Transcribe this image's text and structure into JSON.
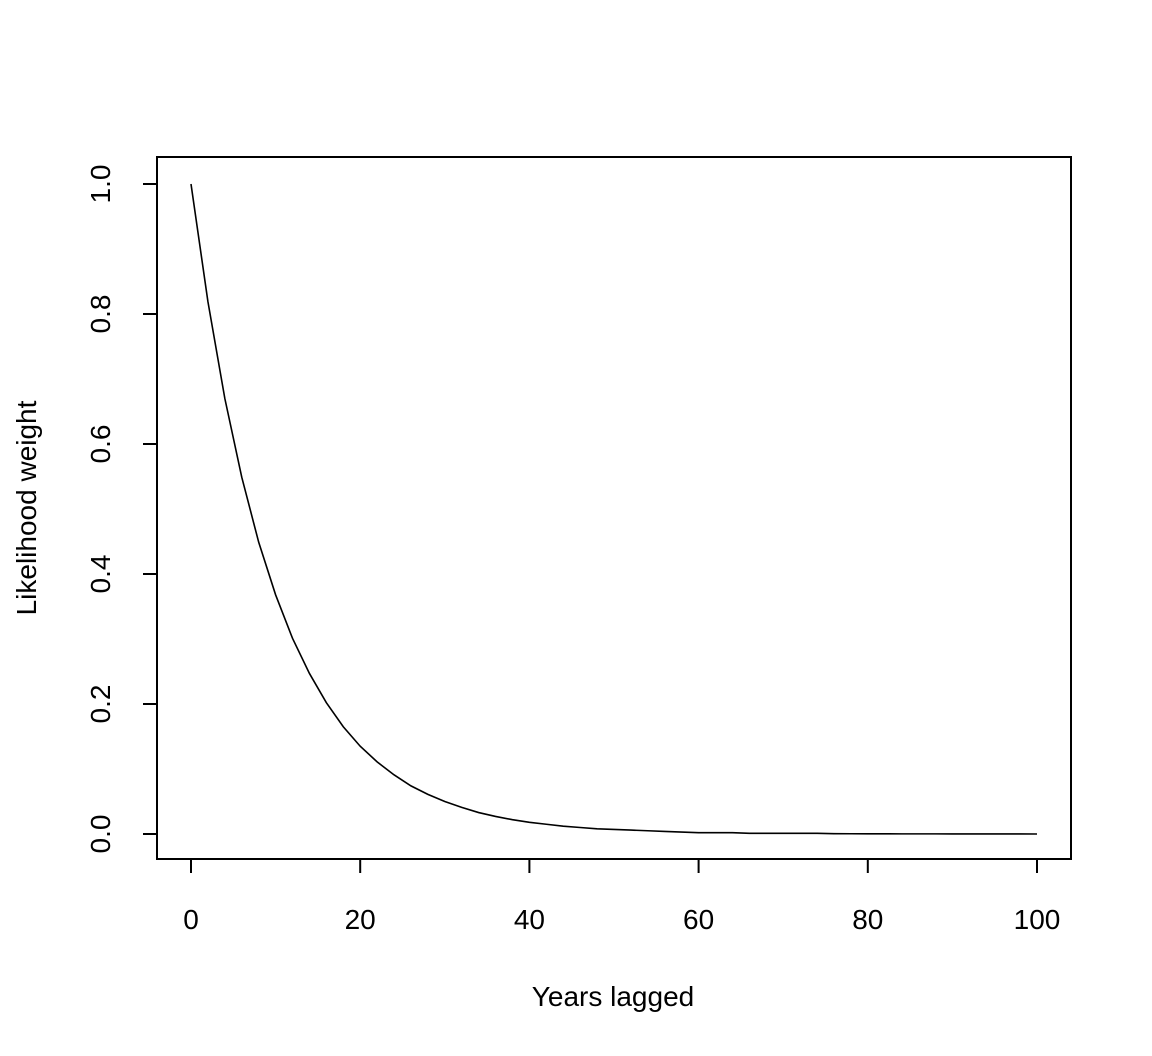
{
  "chart_data": {
    "type": "line",
    "title": "",
    "xlabel": "Years lagged",
    "ylabel": "Likelihood weight",
    "xlim": [
      0,
      100
    ],
    "ylim": [
      0,
      1
    ],
    "grid": false,
    "x_ticks": [
      0,
      20,
      40,
      60,
      80,
      100
    ],
    "y_ticks": [
      0.0,
      0.2,
      0.4,
      0.6,
      0.8,
      1.0
    ],
    "x_tick_labels": [
      "0",
      "20",
      "40",
      "60",
      "80",
      "100"
    ],
    "y_tick_labels": [
      "0.0",
      "0.2",
      "0.4",
      "0.6",
      "0.8",
      "1.0"
    ],
    "series": [
      {
        "x": [
          0,
          2,
          4,
          6,
          8,
          10,
          12,
          14,
          16,
          18,
          20,
          22,
          24,
          26,
          28,
          30,
          32,
          34,
          36,
          38,
          40,
          42,
          44,
          46,
          48,
          50,
          52,
          54,
          56,
          58,
          60,
          62,
          64,
          66,
          68,
          70,
          72,
          74,
          76,
          78,
          80,
          82,
          84,
          86,
          88,
          90,
          92,
          94,
          96,
          98,
          100
        ],
        "y": [
          1.0,
          0.819,
          0.67,
          0.549,
          0.449,
          0.368,
          0.301,
          0.247,
          0.202,
          0.165,
          0.135,
          0.111,
          0.091,
          0.074,
          0.061,
          0.05,
          0.041,
          0.033,
          0.027,
          0.022,
          0.018,
          0.015,
          0.012,
          0.01,
          0.008,
          0.007,
          0.006,
          0.005,
          0.004,
          0.003,
          0.002,
          0.002,
          0.002,
          0.001,
          0.001,
          0.001,
          0.001,
          0.001,
          0.0005,
          0.0004,
          0.0003,
          0.0003,
          0.0002,
          0.0002,
          0.0002,
          0.0001,
          0.0001,
          0.0001,
          0.0001,
          0.0001,
          0.0
        ]
      }
    ]
  }
}
